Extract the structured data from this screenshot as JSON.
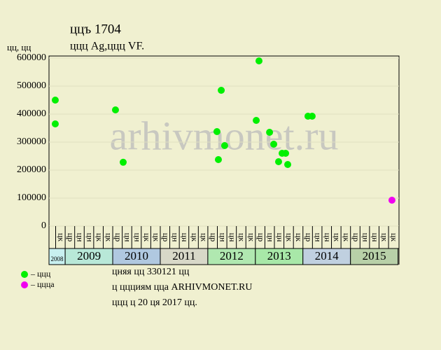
{
  "chart_data": {
    "type": "scatter",
    "title": "ццъ 1704",
    "subtitle": "ццц Ag,ццц VF.",
    "y_label": "цц, цц",
    "watermark": "arhivmonet.ru",
    "xlim": [
      -1.2,
      35.6
    ],
    "ylim": [
      0,
      600000
    ],
    "yticks": [
      0,
      100000,
      200000,
      300000,
      400000,
      500000,
      600000
    ],
    "grid": true,
    "column_labels": [
      "цк",
      "цр",
      "цн",
      "цн",
      "цк",
      "цк",
      "цр",
      "цн",
      "цн",
      "цк",
      "цк",
      "цр",
      "цн",
      "цн",
      "цк",
      "цк",
      "цр",
      "цн",
      "цн",
      "цк",
      "цк",
      "цр",
      "цн",
      "цн",
      "цк",
      "цк",
      "цр",
      "цн",
      "цн",
      "цк",
      "цк",
      "цр",
      "цн",
      "цн",
      "цк",
      "цк"
    ],
    "years": [
      "2008",
      "2009",
      "2010",
      "2011",
      "2012",
      "2013",
      "2014",
      "2015"
    ],
    "year_colors": [
      "#c8f0f0",
      "#b8e8d8",
      "#b0c8e0",
      "#d8d8c8",
      "#b0e8b0",
      "#a8e8a8",
      "#c0d0e0",
      "#b8d0a8"
    ],
    "series": [
      {
        "name": "– ццц",
        "color": "#00f000",
        "x": [
          -0.54,
          -0.54,
          5.79,
          6.6,
          16.46,
          16.61,
          16.91,
          17.27,
          20.59,
          20.88,
          21.99,
          22.43,
          22.94,
          23.31,
          23.68,
          23.9,
          26.03,
          26.47
        ],
        "values": [
          450000,
          365000,
          415000,
          228000,
          337500,
          237500,
          485000,
          287500,
          377500,
          590000,
          335000,
          292500,
          230000,
          260000,
          260000,
          220000,
          392500,
          392500
        ]
      },
      {
        "name": "– ццца",
        "color": "#f000f0",
        "x": [
          34.86
        ],
        "values": [
          92500
        ]
      }
    ],
    "notes": [
      "цняя цц 330121 цц",
      "ц ццциям цца ARHIVMONET.RU",
      "ццц ц 20 ця 2017 цц."
    ]
  }
}
